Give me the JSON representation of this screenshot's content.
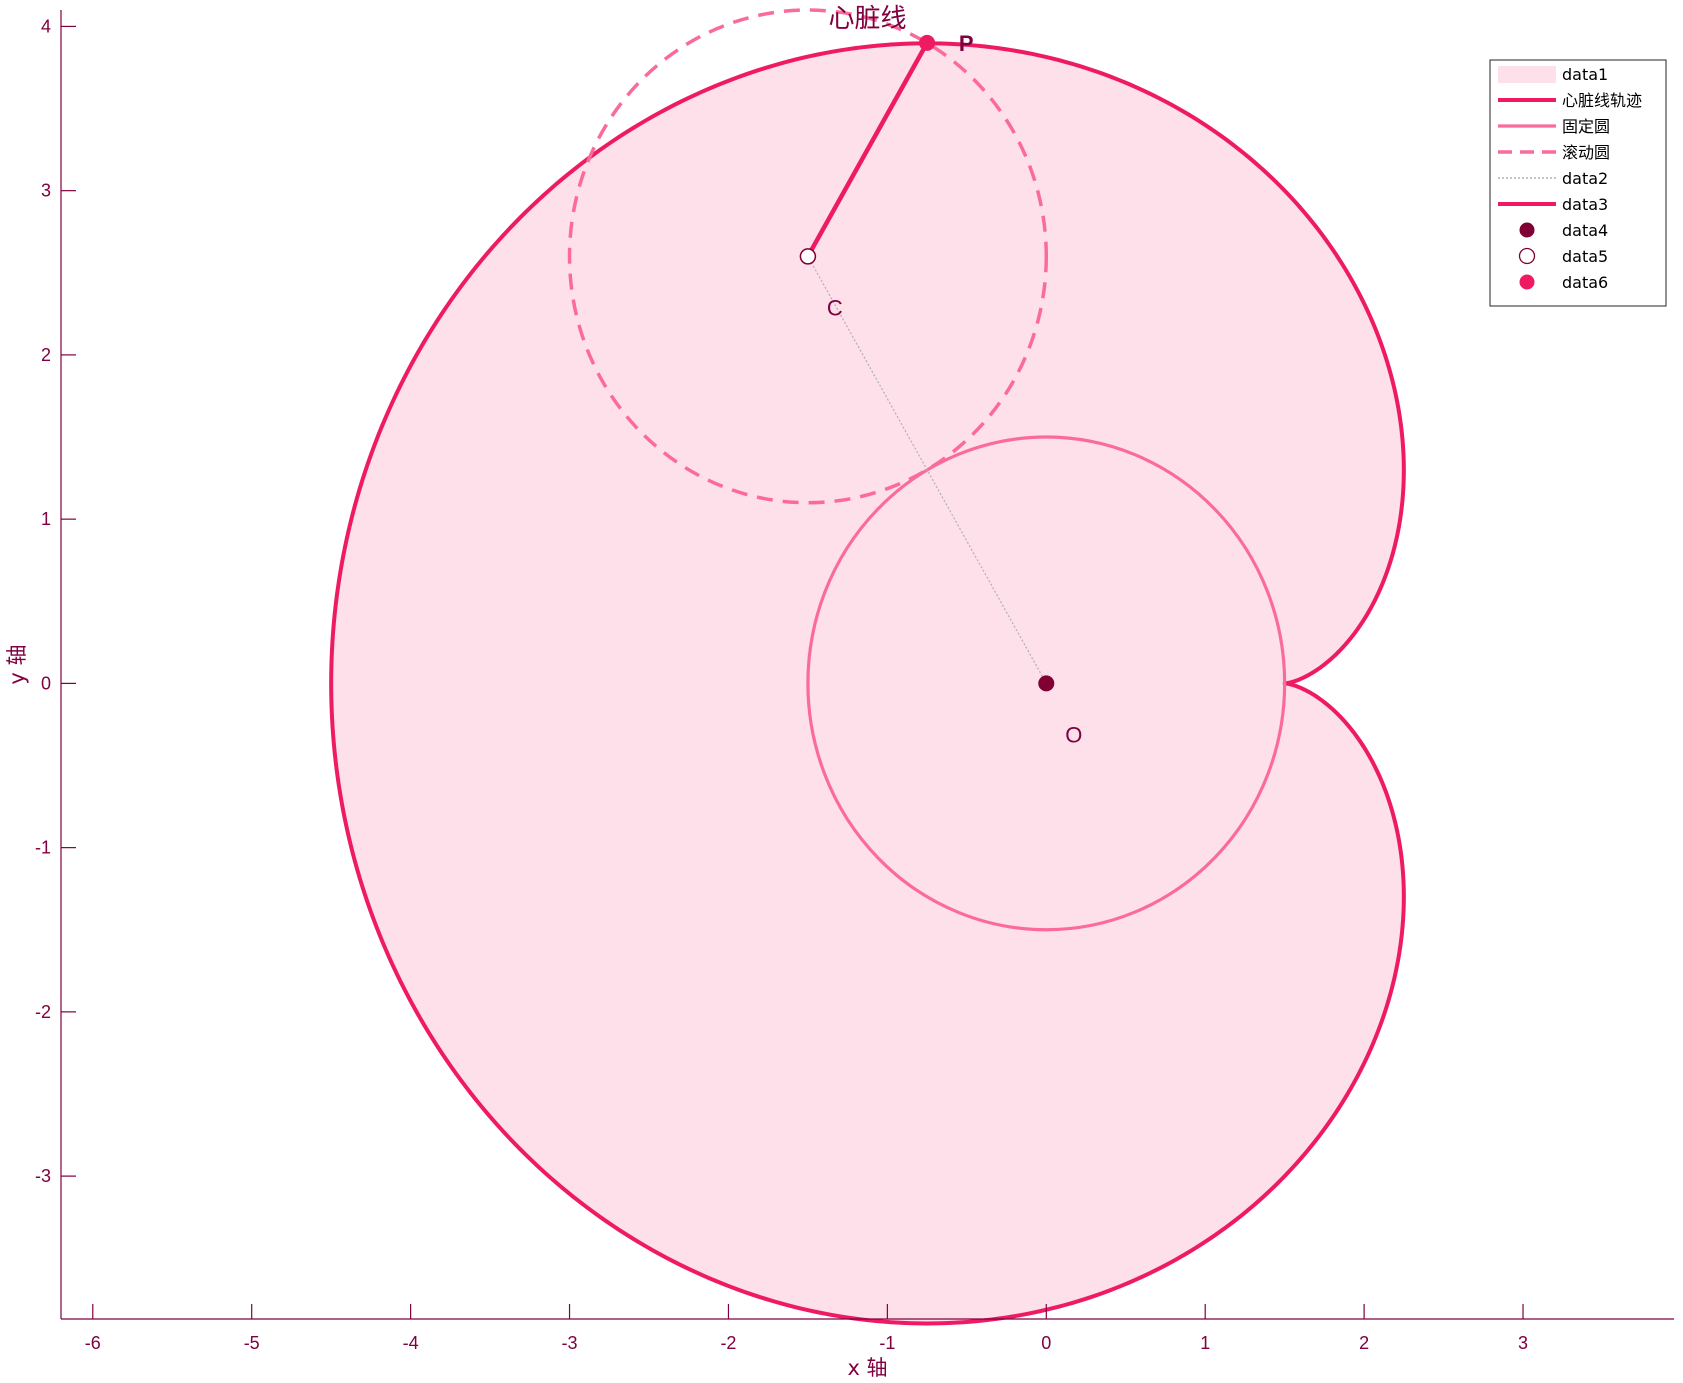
{
  "chart_data": {
    "type": "line",
    "title": "心脏线",
    "xlabel": "x 轴",
    "ylabel": "y 轴",
    "xlim": [
      -6.2,
      3.95
    ],
    "ylim": [
      -3.87,
      4.1
    ],
    "x_ticks": [
      -6,
      -5,
      -4,
      -3,
      -2,
      -1,
      0,
      1,
      2,
      3
    ],
    "y_ticks": [
      -3,
      -2,
      -1,
      0,
      1,
      2,
      3,
      4
    ],
    "grid": false,
    "legend_position": "top-right",
    "fixed_circle": {
      "center": [
        0,
        0
      ],
      "radius": 1.5
    },
    "rolling_circle": {
      "center": [
        -1.5,
        2.6
      ],
      "radius": 1.5
    },
    "cardioid": {
      "fixed_radius": 1.5,
      "rolling_radius": 1.5,
      "cusp": [
        1.5,
        0
      ]
    },
    "points": {
      "O": [
        0,
        0
      ],
      "C": [
        -1.5,
        2.6
      ],
      "P": [
        -0.75,
        3.9
      ]
    },
    "point_labels": {
      "O": {
        "text": "O",
        "at": [
          0.17,
          -0.31
        ]
      },
      "C": {
        "text": "C",
        "at": [
          -1.33,
          2.29
        ]
      },
      "P": {
        "text": "P",
        "at": [
          -0.5,
          3.9
        ]
      }
    },
    "legend": [
      {
        "label": "data1",
        "kind": "fill"
      },
      {
        "label": "心脏线轨迹",
        "kind": "line-thick"
      },
      {
        "label": "固定圆",
        "kind": "line-medium"
      },
      {
        "label": "滚动圆",
        "kind": "line-dashed"
      },
      {
        "label": "data2",
        "kind": "line-dotted"
      },
      {
        "label": "data3",
        "kind": "line-thick"
      },
      {
        "label": "data4",
        "kind": "marker-dark"
      },
      {
        "label": "data5",
        "kind": "marker-hollow"
      },
      {
        "label": "data6",
        "kind": "marker-pink"
      }
    ],
    "colors": {
      "axis": "#800040",
      "fill": "#fde0e9",
      "cardioid": "#ee1b63",
      "fixed_circle": "#fb6b9a",
      "rolling_circle": "#fb6b9a",
      "connector": "#b0b0b0",
      "point_O": "#800033",
      "point_C_fill": "#ffffff",
      "point_P": "#ee1b63",
      "legend_border": "#262626"
    }
  }
}
